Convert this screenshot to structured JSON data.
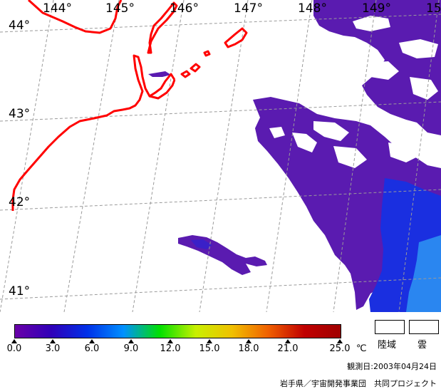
{
  "map": {
    "longitude_labels": [
      "144°",
      "145°",
      "146°",
      "147°",
      "148°",
      "149°",
      "15"
    ],
    "latitude_labels": [
      "44°",
      "43°",
      "42°",
      "41°"
    ],
    "colors": {
      "coastline": "#ff0000",
      "graticule": "#9a9a9a",
      "sst_low": "#5a1bb0",
      "sst_mid": "#1a2fe0",
      "sst_high": "#2a86f0"
    }
  },
  "colorbar": {
    "labels": [
      "0.0",
      "3.0",
      "6.0",
      "9.0",
      "12.0",
      "15.0",
      "18.0",
      "21.0",
      "25.0"
    ],
    "unit": "℃",
    "colors": [
      "#6a00a8",
      "#3000b8",
      "#0030e8",
      "#0090ff",
      "#00e000",
      "#c8f000",
      "#f0c000",
      "#f06000",
      "#c00000",
      "#a00000"
    ]
  },
  "legend": {
    "land_label": "陸域",
    "cloud_label": "雲"
  },
  "observation_date": "観測日:2003年04月24日",
  "credit": "岩手県／宇宙開発事業団　共同プロジェクト"
}
